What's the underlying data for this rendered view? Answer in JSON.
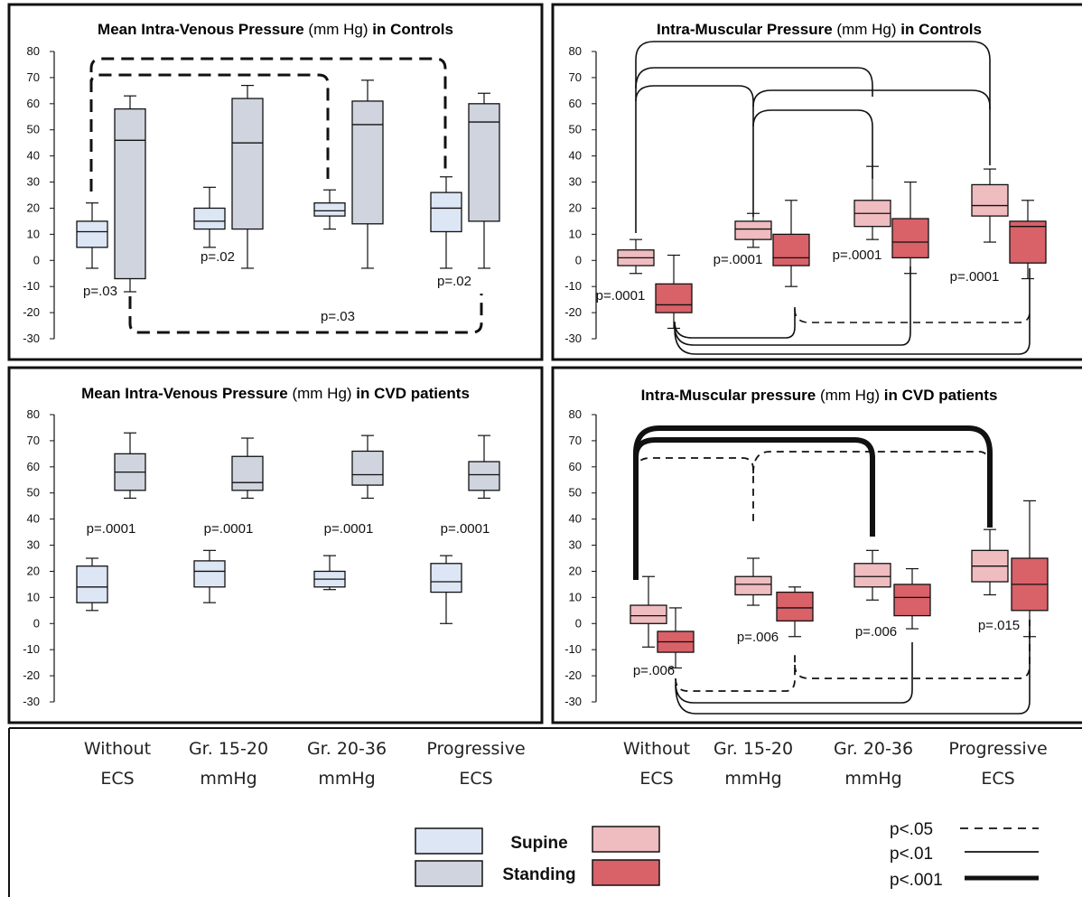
{
  "colors": {
    "venous_supine": "#dde6f5",
    "venous_standing": "#d0d4de",
    "muscular_supine": "#efbcc0",
    "muscular_standing": "#d96168"
  },
  "categories_left": [
    "Without ECS",
    "Gr. 15-20 mmHg",
    "Gr. 20-36 mmHg",
    "Progressive ECS"
  ],
  "categories_right": [
    "Without ECS",
    "Gr. 15-20 mmHg",
    "Gr. 20-36 mmHg",
    "Progressive ECS"
  ],
  "legend": {
    "supine": "Supine",
    "standing": "Standing",
    "sig": [
      "p<.05",
      "p<.01",
      "p<.001"
    ]
  },
  "chart_data": [
    {
      "type": "box",
      "title": [
        "Mean Intra-Venous Pressure",
        " (mm Hg) ",
        "in Controls"
      ],
      "ylim": [
        -30,
        80
      ],
      "yticks": [
        80,
        70,
        60,
        50,
        40,
        30,
        20,
        10,
        0,
        -10,
        -20,
        -30
      ],
      "palette": "venous",
      "groups": [
        {
          "supine": [
            -3,
            5,
            11,
            15,
            22
          ],
          "standing": [
            -12,
            -7,
            46,
            58,
            63
          ],
          "p": "p=.03"
        },
        {
          "supine": [
            5,
            12,
            15,
            20,
            28
          ],
          "standing": [
            -3,
            12,
            45,
            62,
            67
          ],
          "p": "p=.02"
        },
        {
          "supine": [
            12,
            17,
            19,
            22,
            27
          ],
          "standing": [
            -3,
            14,
            52,
            61,
            69
          ],
          "p": "p=.03"
        },
        {
          "supine": [
            -3,
            11,
            20,
            26,
            32
          ],
          "standing": [
            -3,
            15,
            53,
            60,
            64
          ],
          "p": "p=.02"
        }
      ]
    },
    {
      "type": "box",
      "title": [
        "Intra-Muscular Pressure",
        " (mm Hg) ",
        "in Controls"
      ],
      "ylim": [
        -30,
        80
      ],
      "yticks": [
        80,
        70,
        60,
        50,
        40,
        30,
        20,
        10,
        0,
        -10,
        -20,
        -30
      ],
      "palette": "muscular",
      "groups": [
        {
          "supine": [
            -5,
            -2,
            1,
            4,
            8
          ],
          "standing": [
            -26,
            -20,
            -17,
            -9,
            2
          ],
          "p": "p=.0001"
        },
        {
          "supine": [
            5,
            8,
            12,
            15,
            18
          ],
          "standing": [
            -10,
            -2,
            1,
            10,
            23
          ],
          "p": "p=.0001"
        },
        {
          "supine": [
            8,
            13,
            18,
            23,
            36
          ],
          "standing": [
            -5,
            1,
            7,
            16,
            30
          ],
          "p": "p=.0001"
        },
        {
          "supine": [
            7,
            17,
            21,
            29,
            35
          ],
          "standing": [
            -7,
            -1,
            13,
            15,
            23
          ],
          "p": "p=.0001"
        }
      ]
    },
    {
      "type": "box",
      "title": [
        "Mean Intra-Venous Pressure",
        " (mm Hg) ",
        "in CVD patients"
      ],
      "ylim": [
        -30,
        80
      ],
      "yticks": [
        80,
        70,
        60,
        50,
        40,
        30,
        20,
        10,
        0,
        -10,
        -20,
        -30
      ],
      "palette": "venous",
      "groups": [
        {
          "supine": [
            5,
            8,
            14,
            22,
            25
          ],
          "standing": [
            48,
            51,
            58,
            65,
            73
          ],
          "p": "p=.0001"
        },
        {
          "supine": [
            8,
            14,
            20,
            24,
            28
          ],
          "standing": [
            48,
            51,
            54,
            64,
            71
          ],
          "p": "p=.0001"
        },
        {
          "supine": [
            13,
            14,
            17,
            20,
            26
          ],
          "standing": [
            48,
            53,
            57,
            66,
            72
          ],
          "p": "p=.0001"
        },
        {
          "supine": [
            0,
            12,
            16,
            23,
            26
          ],
          "standing": [
            48,
            51,
            57,
            62,
            72
          ],
          "p": "p=.0001"
        }
      ]
    },
    {
      "type": "box",
      "title": [
        "Intra-Muscular pressure",
        " (mm Hg) ",
        "in CVD patients"
      ],
      "ylim": [
        -30,
        80
      ],
      "yticks": [
        80,
        70,
        60,
        50,
        40,
        30,
        20,
        10,
        0,
        -10,
        -20,
        -30
      ],
      "palette": "muscular",
      "groups": [
        {
          "supine": [
            -9,
            0,
            3,
            7,
            18
          ],
          "standing": [
            -17,
            -11,
            -7,
            -3,
            6
          ],
          "p": "p=.006"
        },
        {
          "supine": [
            7,
            11,
            15,
            18,
            25
          ],
          "standing": [
            -5,
            1,
            6,
            12,
            14
          ],
          "p": "p=.006"
        },
        {
          "supine": [
            9,
            14,
            18,
            23,
            28
          ],
          "standing": [
            -2,
            3,
            10,
            15,
            21
          ],
          "p": "p=.006"
        },
        {
          "supine": [
            11,
            16,
            22,
            28,
            36
          ],
          "standing": [
            -5,
            5,
            15,
            25,
            47
          ],
          "p": "p=.015"
        }
      ]
    }
  ]
}
